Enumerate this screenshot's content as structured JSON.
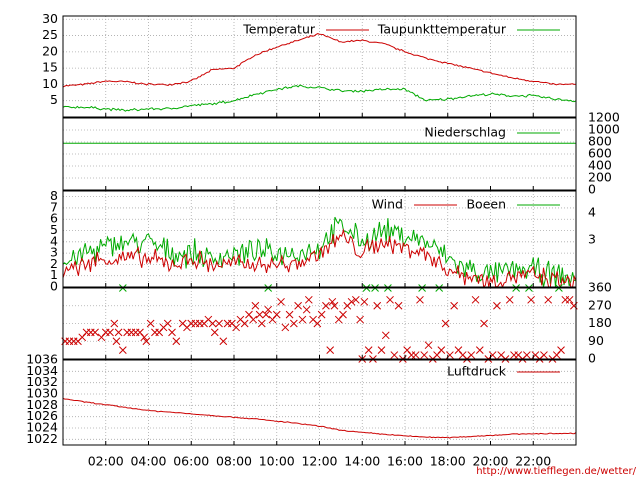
{
  "chart_data": [
    {
      "type": "line",
      "title": "",
      "xlabel": "",
      "ylabel": "",
      "ylim": [
        0,
        31
      ],
      "yticks": [
        "5",
        "10",
        "15",
        "20",
        "25",
        "30"
      ],
      "grid": true,
      "legend": "top",
      "x_hours": [
        0,
        1,
        2,
        3,
        4,
        5,
        6,
        7,
        8,
        9,
        10,
        11,
        12,
        13,
        14,
        15,
        16,
        17,
        18,
        19,
        20,
        21,
        22,
        23,
        24
      ],
      "series": [
        {
          "name": "Temperatur",
          "color": "#cc0000",
          "values": [
            9.5,
            10,
            11,
            10.8,
            10,
            10,
            11,
            14.5,
            15,
            19,
            21.5,
            23.5,
            25.5,
            23,
            23.5,
            22.5,
            20,
            18,
            16.5,
            15,
            13.5,
            12,
            11,
            10,
            10
          ]
        },
        {
          "name": "Taupunkttemperatur",
          "color": "#00aa00",
          "values": [
            3,
            3,
            2.5,
            2,
            2.5,
            2.5,
            3.5,
            4,
            5,
            7,
            8.5,
            9.5,
            9,
            8,
            8,
            8.5,
            8.5,
            5,
            5.5,
            6.5,
            7,
            6.5,
            6.5,
            5.5,
            5
          ]
        }
      ]
    },
    {
      "type": "line",
      "title": "",
      "ylim": [
        0,
        1200
      ],
      "yticks": [
        "0",
        "200",
        "400",
        "600",
        "800",
        "1000",
        "1200"
      ],
      "grid": true,
      "legend": "top",
      "x_hours": [
        0,
        24
      ],
      "series": [
        {
          "name": "Niederschlag",
          "color": "#00aa00",
          "values": [
            780,
            780
          ]
        }
      ]
    },
    {
      "type": "line",
      "title": "",
      "ylim": [
        0,
        8.5
      ],
      "yticks": [
        "0",
        "1",
        "2",
        "3",
        "4",
        "5",
        "6",
        "7",
        "8"
      ],
      "right_labels": [
        "3",
        "4"
      ],
      "grid": true,
      "legend": "top",
      "x_hours": [
        0,
        1,
        2,
        3,
        4,
        5,
        6,
        7,
        8,
        9,
        10,
        11,
        12,
        13,
        14,
        15,
        16,
        17,
        18,
        19,
        20,
        21,
        22,
        23,
        24
      ],
      "series": [
        {
          "name": "Wind",
          "color": "#cc0000",
          "values": [
            1.5,
            2,
            2.5,
            2.5,
            2.5,
            2,
            2.5,
            2,
            2,
            2,
            2,
            2,
            3,
            4.5,
            3,
            4,
            3.5,
            3,
            1.5,
            1,
            0.5,
            1,
            1,
            0.5,
            0.3
          ]
        },
        {
          "name": "Boeen",
          "color": "#00aa00",
          "values": [
            2,
            3,
            3.5,
            4,
            4,
            3,
            3,
            2.5,
            3,
            3,
            3,
            3,
            3.5,
            5.5,
            4,
            5,
            4.5,
            4,
            2.5,
            1.5,
            1,
            1.5,
            1.5,
            1,
            0.5
          ]
        }
      ]
    },
    {
      "type": "scatter",
      "title": "",
      "ylim": [
        0,
        360
      ],
      "right_labels": [
        "0",
        "90",
        "180",
        "270",
        "360"
      ],
      "legend": "none",
      "series": [
        {
          "name": "",
          "color": "#cc0000",
          "points": [
            [
              0.1,
              90
            ],
            [
              0.3,
              90
            ],
            [
              0.5,
              90
            ],
            [
              0.7,
              90
            ],
            [
              0.9,
              110
            ],
            [
              1.1,
              135
            ],
            [
              1.3,
              135
            ],
            [
              1.5,
              135
            ],
            [
              1.8,
              110
            ],
            [
              2.0,
              135
            ],
            [
              2.2,
              135
            ],
            [
              2.4,
              180
            ],
            [
              2.5,
              90
            ],
            [
              2.6,
              135
            ],
            [
              2.8,
              45
            ],
            [
              3.0,
              135
            ],
            [
              3.2,
              135
            ],
            [
              3.4,
              135
            ],
            [
              3.6,
              135
            ],
            [
              3.8,
              110
            ],
            [
              3.9,
              90
            ],
            [
              4.1,
              180
            ],
            [
              4.3,
              135
            ],
            [
              4.5,
              135
            ],
            [
              4.7,
              160
            ],
            [
              4.9,
              180
            ],
            [
              5.1,
              135
            ],
            [
              5.3,
              90
            ],
            [
              5.6,
              180
            ],
            [
              5.8,
              160
            ],
            [
              6.0,
              180
            ],
            [
              6.2,
              180
            ],
            [
              6.4,
              180
            ],
            [
              6.6,
              180
            ],
            [
              6.8,
              200
            ],
            [
              7.0,
              180
            ],
            [
              7.1,
              135
            ],
            [
              7.3,
              180
            ],
            [
              7.5,
              90
            ],
            [
              7.7,
              180
            ],
            [
              7.9,
              180
            ],
            [
              8.1,
              160
            ],
            [
              8.3,
              200
            ],
            [
              8.5,
              180
            ],
            [
              8.7,
              225
            ],
            [
              8.9,
              200
            ],
            [
              9.0,
              270
            ],
            [
              9.2,
              225
            ],
            [
              9.3,
              180
            ],
            [
              9.5,
              225
            ],
            [
              9.6,
              250
            ],
            [
              9.8,
              200
            ],
            [
              10.0,
              225
            ],
            [
              10.2,
              290
            ],
            [
              10.4,
              160
            ],
            [
              10.6,
              225
            ],
            [
              10.8,
              180
            ],
            [
              11.0,
              270
            ],
            [
              11.2,
              200
            ],
            [
              11.4,
              250
            ],
            [
              11.5,
              300
            ],
            [
              11.7,
              200
            ],
            [
              11.9,
              180
            ],
            [
              12.1,
              225
            ],
            [
              12.3,
              270
            ],
            [
              12.5,
              45
            ],
            [
              12.6,
              290
            ],
            [
              12.7,
              270
            ],
            [
              12.9,
              200
            ],
            [
              13.1,
              225
            ],
            [
              13.3,
              270
            ],
            [
              13.5,
              290
            ],
            [
              13.7,
              300
            ],
            [
              13.9,
              200
            ],
            [
              14.0,
              0
            ],
            [
              14.1,
              290
            ],
            [
              14.3,
              45
            ],
            [
              14.5,
              0
            ],
            [
              14.7,
              270
            ],
            [
              14.9,
              45
            ],
            [
              15.1,
              120
            ],
            [
              15.3,
              300
            ],
            [
              15.5,
              20
            ],
            [
              15.7,
              270
            ],
            [
              15.9,
              0
            ],
            [
              16.1,
              45
            ],
            [
              16.3,
              20
            ],
            [
              16.5,
              20
            ],
            [
              16.7,
              300
            ],
            [
              16.9,
              20
            ],
            [
              17.1,
              70
            ],
            [
              17.3,
              0
            ],
            [
              17.5,
              20
            ],
            [
              17.7,
              45
            ],
            [
              17.9,
              180
            ],
            [
              18.1,
              20
            ],
            [
              18.3,
              270
            ],
            [
              18.5,
              45
            ],
            [
              18.7,
              20
            ],
            [
              18.9,
              0
            ],
            [
              19.1,
              20
            ],
            [
              19.3,
              300
            ],
            [
              19.5,
              45
            ],
            [
              19.7,
              180
            ],
            [
              19.9,
              0
            ],
            [
              20.1,
              20
            ],
            [
              20.3,
              270
            ],
            [
              20.5,
              20
            ],
            [
              20.7,
              0
            ],
            [
              20.9,
              300
            ],
            [
              21.1,
              20
            ],
            [
              21.3,
              20
            ],
            [
              21.5,
              0
            ],
            [
              21.7,
              20
            ],
            [
              21.9,
              300
            ],
            [
              22.1,
              20
            ],
            [
              22.3,
              0
            ],
            [
              22.5,
              20
            ],
            [
              22.7,
              300
            ],
            [
              22.9,
              0
            ],
            [
              23.1,
              20
            ],
            [
              23.3,
              45
            ],
            [
              23.5,
              300
            ],
            [
              23.7,
              300
            ],
            [
              23.9,
              270
            ]
          ]
        },
        {
          "name": "",
          "color": "#00aa00",
          "points": [
            [
              2.8,
              360
            ],
            [
              9.6,
              360
            ],
            [
              14.2,
              360
            ],
            [
              14.6,
              360
            ],
            [
              15.2,
              360
            ],
            [
              16.8,
              360
            ],
            [
              17.6,
              360
            ],
            [
              21.2,
              360
            ],
            [
              21.8,
              360
            ],
            [
              23.2,
              360
            ]
          ]
        }
      ]
    },
    {
      "type": "line",
      "title": "",
      "ylim": [
        1021,
        1036
      ],
      "yticks": [
        "1022",
        "1024",
        "1026",
        "1028",
        "1030",
        "1032",
        "1034",
        "1036"
      ],
      "xticks": [
        "02:00",
        "04:00",
        "06:00",
        "08:00",
        "10:00",
        "12:00",
        "14:00",
        "16:00",
        "18:00",
        "20:00",
        "22:00"
      ],
      "grid": true,
      "legend": "top-right",
      "x_hours": [
        0,
        1,
        2,
        3,
        4,
        5,
        6,
        7,
        8,
        9,
        10,
        11,
        12,
        13,
        14,
        15,
        16,
        17,
        18,
        19,
        20,
        21,
        22,
        23,
        24
      ],
      "series": [
        {
          "name": "Luftdruck",
          "color": "#cc0000",
          "values": [
            1029.2,
            1028.6,
            1028.1,
            1027.6,
            1027.1,
            1026.8,
            1026.5,
            1026.2,
            1025.9,
            1025.6,
            1025.2,
            1024.8,
            1024.3,
            1023.6,
            1023.2,
            1022.9,
            1022.6,
            1022.4,
            1022.3,
            1022.5,
            1022.7,
            1022.9,
            1023.0,
            1023.0,
            1023.1
          ]
        }
      ]
    }
  ],
  "url": "http://www.tiefflegen.de/wetter/"
}
